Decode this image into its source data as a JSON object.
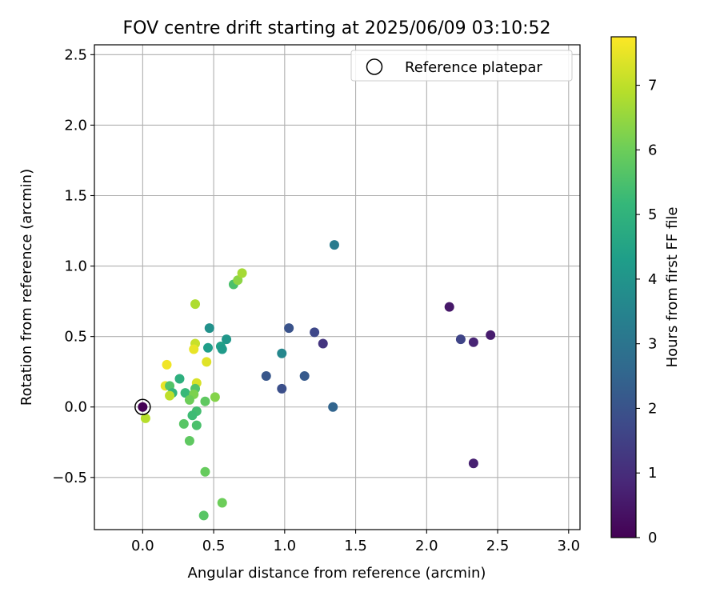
{
  "chart_data": {
    "type": "scatter",
    "title": "FOV centre drift starting at 2025/06/09 03:10:52",
    "xlabel": "Angular distance from reference (arcmin)",
    "ylabel": "Rotation from reference (arcmin)",
    "xlim": [
      -0.34,
      3.08
    ],
    "ylim": [
      -0.87,
      2.57
    ],
    "xticks": [
      0.0,
      0.5,
      1.0,
      1.5,
      2.0,
      2.5,
      3.0
    ],
    "xtick_labels": [
      "0.0",
      "0.5",
      "1.0",
      "1.5",
      "2.0",
      "2.5",
      "3.0"
    ],
    "yticks": [
      -0.5,
      0.0,
      0.5,
      1.0,
      1.5,
      2.0,
      2.5
    ],
    "ytick_labels": [
      "−0.5",
      "0.0",
      "0.5",
      "1.0",
      "1.5",
      "2.0",
      "2.5"
    ],
    "grid": true,
    "legend": {
      "position": "top-right",
      "label": "Reference platepar"
    },
    "reference_point": {
      "x": 0.0,
      "y": 0.0
    },
    "colorbar": {
      "label": "Hours from first FF file",
      "colormap": "viridis",
      "range": [
        0,
        7.75
      ],
      "ticks": [
        0,
        1,
        2,
        3,
        4,
        5,
        6,
        7
      ],
      "tick_labels": [
        "0",
        "1",
        "2",
        "3",
        "4",
        "5",
        "6",
        "7"
      ]
    },
    "series": [
      {
        "points": [
          {
            "x": 0.0,
            "y": 0.0,
            "c": 0.0
          },
          {
            "x": 2.16,
            "y": 0.71,
            "c": 0.5
          },
          {
            "x": 2.33,
            "y": 0.46,
            "c": 0.8
          },
          {
            "x": 2.45,
            "y": 0.51,
            "c": 0.6
          },
          {
            "x": 2.33,
            "y": -0.4,
            "c": 0.7
          },
          {
            "x": 2.24,
            "y": 0.48,
            "c": 1.6
          },
          {
            "x": 1.27,
            "y": 0.45,
            "c": 1.2
          },
          {
            "x": 1.21,
            "y": 0.53,
            "c": 1.7
          },
          {
            "x": 1.03,
            "y": 0.56,
            "c": 2.0
          },
          {
            "x": 0.98,
            "y": 0.13,
            "c": 1.9
          },
          {
            "x": 0.87,
            "y": 0.22,
            "c": 2.1
          },
          {
            "x": 1.14,
            "y": 0.22,
            "c": 2.2
          },
          {
            "x": 1.34,
            "y": 0.0,
            "c": 2.5
          },
          {
            "x": 1.35,
            "y": 1.15,
            "c": 3.2
          },
          {
            "x": 0.98,
            "y": 0.38,
            "c": 3.6
          },
          {
            "x": 0.47,
            "y": 0.56,
            "c": 3.9
          },
          {
            "x": 0.59,
            "y": 0.48,
            "c": 4.1
          },
          {
            "x": 0.55,
            "y": 0.43,
            "c": 4.4
          },
          {
            "x": 0.56,
            "y": 0.41,
            "c": 4.2
          },
          {
            "x": 0.46,
            "y": 0.42,
            "c": 4.3
          },
          {
            "x": 0.64,
            "y": 0.87,
            "c": 5.5
          },
          {
            "x": 0.67,
            "y": 0.9,
            "c": 6.4
          },
          {
            "x": 0.7,
            "y": 0.95,
            "c": 6.7
          },
          {
            "x": 0.37,
            "y": 0.73,
            "c": 6.8
          },
          {
            "x": 0.37,
            "y": 0.45,
            "c": 7.1
          },
          {
            "x": 0.36,
            "y": 0.41,
            "c": 7.5
          },
          {
            "x": 0.45,
            "y": 0.32,
            "c": 7.4
          },
          {
            "x": 0.17,
            "y": 0.3,
            "c": 7.6
          },
          {
            "x": 0.16,
            "y": 0.15,
            "c": 7.5
          },
          {
            "x": 0.38,
            "y": 0.17,
            "c": 7.3
          },
          {
            "x": 0.19,
            "y": 0.15,
            "c": 5.6
          },
          {
            "x": 0.26,
            "y": 0.2,
            "c": 4.9
          },
          {
            "x": 0.21,
            "y": 0.1,
            "c": 5.1
          },
          {
            "x": 0.19,
            "y": 0.08,
            "c": 7.0
          },
          {
            "x": 0.3,
            "y": 0.1,
            "c": 5.2
          },
          {
            "x": 0.37,
            "y": 0.13,
            "c": 5.6
          },
          {
            "x": 0.36,
            "y": 0.09,
            "c": 6.2
          },
          {
            "x": 0.33,
            "y": 0.05,
            "c": 6.0
          },
          {
            "x": 0.44,
            "y": 0.04,
            "c": 5.8
          },
          {
            "x": 0.51,
            "y": 0.07,
            "c": 6.3
          },
          {
            "x": 0.38,
            "y": -0.03,
            "c": 5.4
          },
          {
            "x": 0.35,
            "y": -0.06,
            "c": 5.3
          },
          {
            "x": 0.29,
            "y": -0.12,
            "c": 5.7
          },
          {
            "x": 0.38,
            "y": -0.13,
            "c": 5.5
          },
          {
            "x": 0.33,
            "y": -0.24,
            "c": 5.8
          },
          {
            "x": 0.02,
            "y": -0.08,
            "c": 6.9
          },
          {
            "x": 0.44,
            "y": -0.46,
            "c": 5.9
          },
          {
            "x": 0.56,
            "y": -0.68,
            "c": 6.0
          },
          {
            "x": 0.43,
            "y": -0.77,
            "c": 5.7
          }
        ]
      }
    ]
  }
}
